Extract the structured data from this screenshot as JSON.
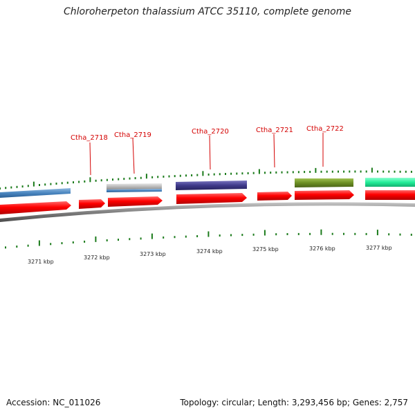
{
  "title": "Chloroherpeton thalassium ATCC 35110, complete genome",
  "footer": {
    "accession": "Accession: NC_011026",
    "summary": "Topology: circular; Length: 3,293,456 bp; Genes: 2,757"
  },
  "genes": [
    {
      "name": "Ctha_2718"
    },
    {
      "name": "Ctha_2719"
    },
    {
      "name": "Ctha_2720"
    },
    {
      "name": "Ctha_2721"
    },
    {
      "name": "Ctha_2722"
    }
  ],
  "scale_labels": [
    "3271 kbp",
    "3272 kbp",
    "3273 kbp",
    "3274 kbp",
    "3275 kbp",
    "3276 kbp",
    "3277 kbp"
  ],
  "colors": {
    "label": "#d40000",
    "gene_red": "#ff0000",
    "tick_green": "#1a7a1a",
    "backbone": "#888888",
    "blue": "#4a86c0",
    "light_grey": "#bdbdbd",
    "dark_blue": "#3f3a8a",
    "olive": "#6b8e23",
    "spring_green": "#22ee99"
  }
}
